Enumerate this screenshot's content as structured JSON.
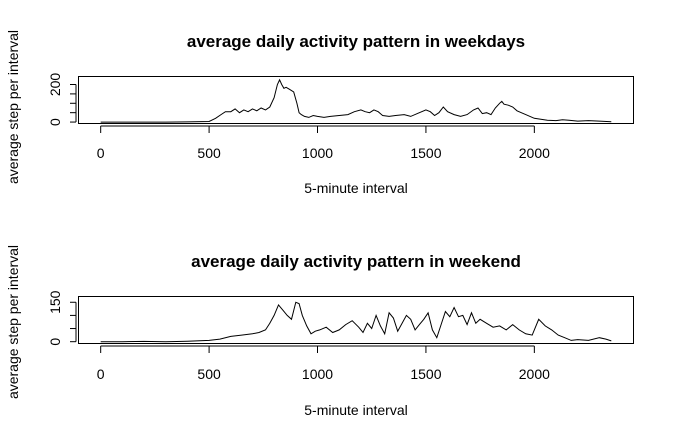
{
  "chart_data": [
    {
      "type": "line",
      "title": "average daily activity pattern in weekdays",
      "xlabel": "5-minute interval",
      "ylabel": "average step per interval",
      "xlim": [
        -100,
        2455
      ],
      "ylim": [
        -5,
        240
      ],
      "xticks": [
        0,
        500,
        1000,
        1500,
        2000
      ],
      "yticks": [
        0,
        50,
        100,
        150,
        200
      ],
      "ytick_labels": [
        "0",
        "",
        "",
        "",
        "200"
      ],
      "grid": false,
      "series": [
        {
          "x": [
            0,
            100,
            200,
            300,
            400,
            500,
            530,
            555,
            575,
            600,
            620,
            640,
            660,
            680,
            700,
            720,
            740,
            760,
            780,
            800,
            815,
            825,
            835,
            845,
            855,
            870,
            890,
            905,
            915,
            925,
            940,
            960,
            980,
            1000,
            1030,
            1060,
            1100,
            1140,
            1170,
            1200,
            1220,
            1240,
            1260,
            1280,
            1300,
            1330,
            1360,
            1400,
            1430,
            1460,
            1500,
            1520,
            1540,
            1560,
            1580,
            1600,
            1630,
            1660,
            1690,
            1720,
            1740,
            1760,
            1780,
            1800,
            1820,
            1840,
            1850,
            1860,
            1880,
            1900,
            1920,
            1940,
            1960,
            1980,
            2000,
            2030,
            2060,
            2100,
            2130,
            2160,
            2200,
            2250,
            2300,
            2355
          ],
          "y": [
            0,
            0,
            0,
            0,
            1,
            3,
            20,
            40,
            55,
            55,
            70,
            50,
            65,
            55,
            70,
            60,
            75,
            65,
            80,
            130,
            200,
            225,
            200,
            180,
            185,
            175,
            160,
            100,
            50,
            40,
            30,
            25,
            35,
            30,
            25,
            30,
            35,
            40,
            55,
            65,
            55,
            50,
            65,
            55,
            35,
            30,
            35,
            40,
            30,
            45,
            65,
            55,
            35,
            50,
            80,
            55,
            40,
            30,
            40,
            65,
            75,
            45,
            50,
            40,
            75,
            100,
            110,
            95,
            90,
            80,
            60,
            50,
            40,
            30,
            20,
            15,
            10,
            8,
            12,
            10,
            5,
            8,
            5,
            2
          ]
        }
      ]
    },
    {
      "type": "line",
      "title": "average daily activity pattern in weekend",
      "xlabel": "5-minute interval",
      "ylabel": "average step per interval",
      "xlim": [
        -100,
        2455
      ],
      "ylim": [
        -5,
        170
      ],
      "xticks": [
        0,
        500,
        1000,
        1500,
        2000
      ],
      "yticks": [
        0,
        50,
        100,
        150
      ],
      "ytick_labels": [
        "0",
        "",
        "",
        "150"
      ],
      "grid": false,
      "series": [
        {
          "x": [
            0,
            100,
            200,
            300,
            400,
            500,
            550,
            600,
            650,
            700,
            730,
            760,
            780,
            800,
            820,
            840,
            860,
            880,
            900,
            915,
            930,
            950,
            970,
            990,
            1010,
            1040,
            1070,
            1100,
            1130,
            1160,
            1190,
            1210,
            1230,
            1250,
            1270,
            1290,
            1310,
            1330,
            1350,
            1370,
            1390,
            1410,
            1430,
            1450,
            1470,
            1490,
            1510,
            1530,
            1550,
            1570,
            1590,
            1610,
            1630,
            1650,
            1670,
            1690,
            1710,
            1730,
            1750,
            1780,
            1810,
            1840,
            1870,
            1900,
            1930,
            1960,
            1990,
            2020,
            2050,
            2080,
            2110,
            2140,
            2170,
            2200,
            2250,
            2300,
            2330,
            2355
          ],
          "y": [
            0,
            0,
            1,
            0,
            2,
            5,
            10,
            20,
            25,
            30,
            35,
            45,
            70,
            100,
            140,
            120,
            100,
            85,
            150,
            145,
            100,
            60,
            30,
            40,
            45,
            55,
            35,
            45,
            65,
            80,
            55,
            35,
            70,
            50,
            100,
            60,
            30,
            110,
            90,
            40,
            70,
            100,
            85,
            45,
            65,
            85,
            110,
            45,
            15,
            65,
            115,
            95,
            130,
            95,
            100,
            65,
            110,
            70,
            85,
            70,
            55,
            60,
            45,
            65,
            45,
            30,
            25,
            85,
            60,
            45,
            25,
            15,
            5,
            8,
            5,
            15,
            10,
            3
          ]
        }
      ]
    }
  ]
}
